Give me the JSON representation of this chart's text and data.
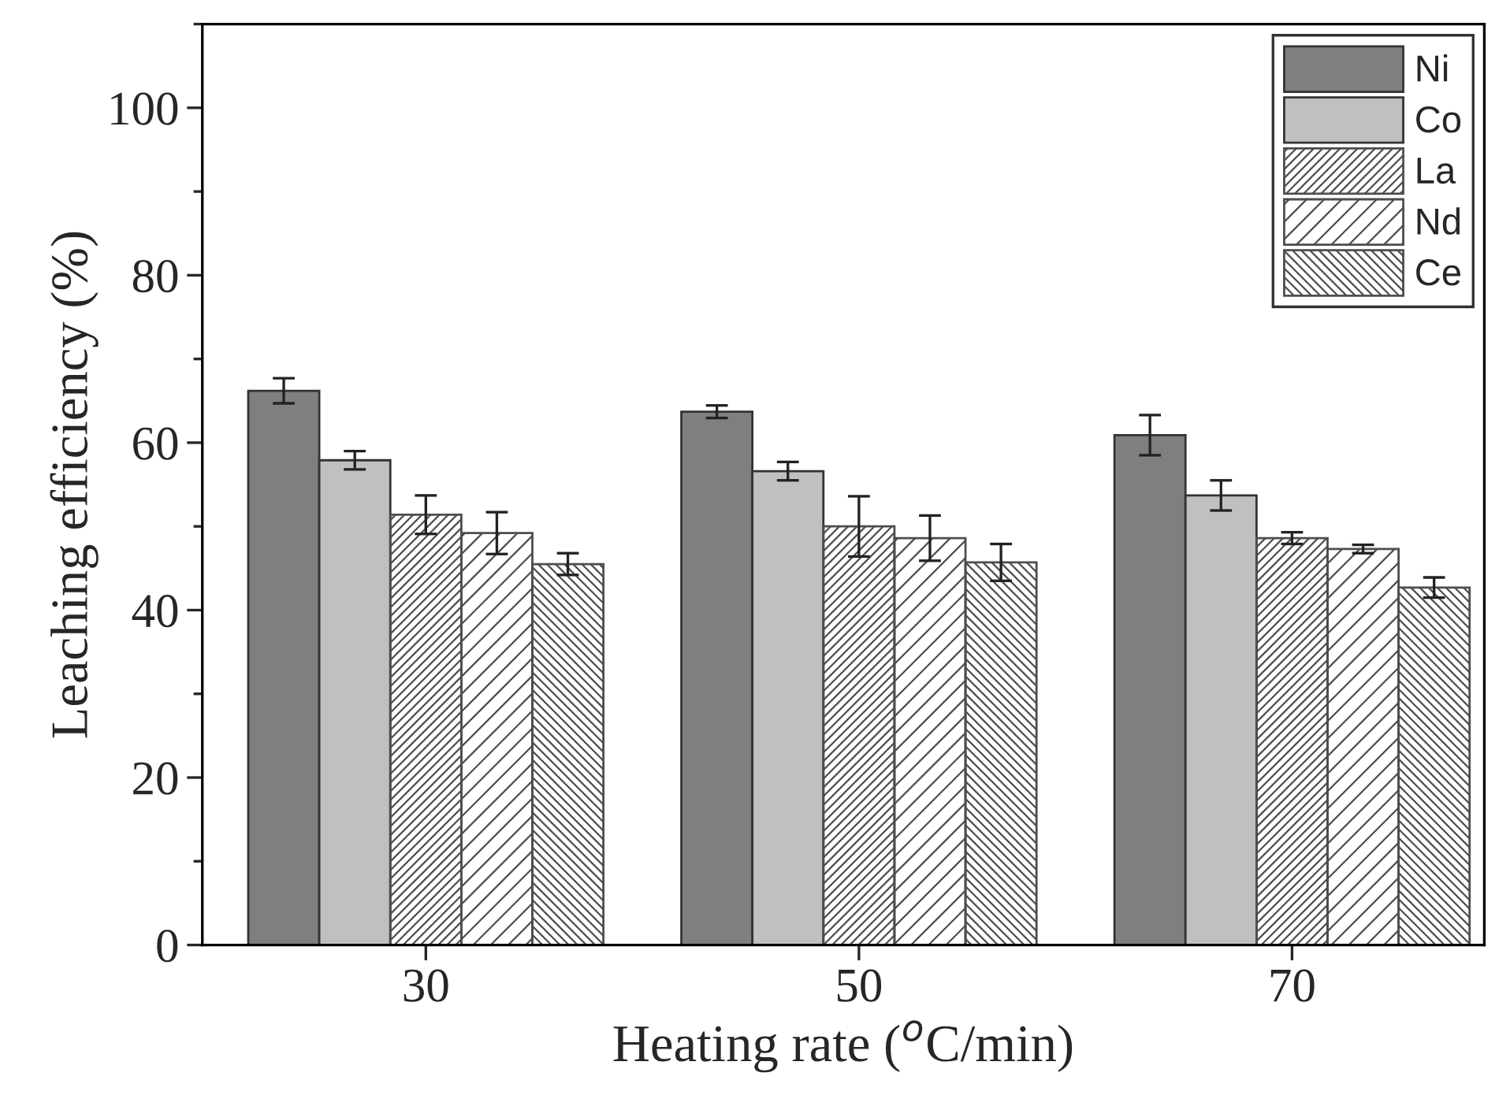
{
  "chart_data": {
    "type": "bar",
    "xlabel": "Heating rate ($^{o}$C/min)",
    "ylabel": "Leaching efficiency (%)",
    "categories": [
      "30",
      "50",
      "70"
    ],
    "series": [
      {
        "name": "Ni",
        "color": "#7f7f7f",
        "values": [
          66.2,
          63.7,
          60.9
        ],
        "errors": [
          1.5,
          0.75,
          2.4
        ]
      },
      {
        "name": "Co",
        "color": "#c0c0c0",
        "values": [
          57.9,
          56.6,
          53.7
        ],
        "errors": [
          1.1,
          1.1,
          1.8
        ]
      },
      {
        "name": "La",
        "color": "#4d4d4d",
        "values": [
          51.4,
          50.0,
          48.6
        ],
        "errors": [
          2.3,
          3.6,
          0.7
        ]
      },
      {
        "name": "Nd",
        "color": "#4d4d4d",
        "values": [
          49.2,
          48.6,
          47.3
        ],
        "errors": [
          2.5,
          2.7,
          0.5
        ]
      },
      {
        "name": "Ce",
        "color": "#4d4d4d",
        "values": [
          45.5,
          45.7,
          42.7
        ],
        "errors": [
          1.3,
          2.2,
          1.2
        ]
      }
    ],
    "ylim": [
      0,
      110
    ],
    "yticks": [
      0,
      20,
      40,
      60,
      80,
      100
    ],
    "grid": false,
    "legend": "top right"
  }
}
